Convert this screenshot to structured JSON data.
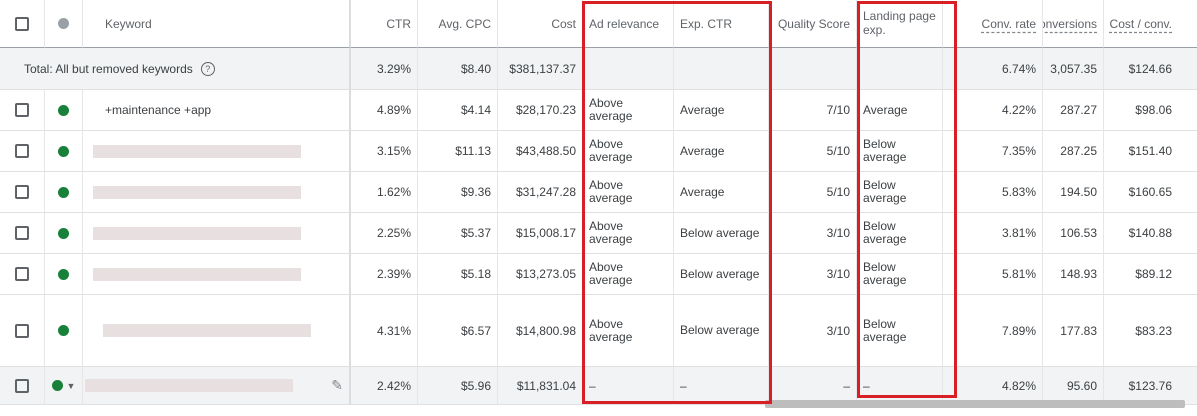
{
  "headers": {
    "keyword": "Keyword",
    "ctr": "CTR",
    "avg_cpc": "Avg. CPC",
    "cost": "Cost",
    "ad_relevance": "Ad relevance",
    "exp_ctr": "Exp. CTR",
    "quality_score": "Quality Score",
    "landing_page": "Landing page exp.",
    "conv_rate": "Conv. rate",
    "conversions": "Conversions",
    "cost_per_conv": "Cost / conv."
  },
  "total": {
    "label": "Total: All but removed keywords",
    "ctr": "3.29%",
    "avg_cpc": "$8.40",
    "cost": "$381,137.37",
    "conv_rate": "6.74%",
    "conversions": "3,057.35",
    "cost_per_conv": "$124.66"
  },
  "rows": [
    {
      "keyword": "+maintenance +app",
      "ctr": "4.89%",
      "avg_cpc": "$4.14",
      "cost": "$28,170.23",
      "ad_relevance": "Above average",
      "exp_ctr": "Average",
      "quality_score": "7/10",
      "landing_page": "Average",
      "conv_rate": "4.22%",
      "conversions": "287.27",
      "cost_per_conv": "$98.06"
    },
    {
      "keyword": "",
      "ctr": "3.15%",
      "avg_cpc": "$11.13",
      "cost": "$43,488.50",
      "ad_relevance": "Above average",
      "exp_ctr": "Average",
      "quality_score": "5/10",
      "landing_page": "Below average",
      "conv_rate": "7.35%",
      "conversions": "287.25",
      "cost_per_conv": "$151.40"
    },
    {
      "keyword": "",
      "ctr": "1.62%",
      "avg_cpc": "$9.36",
      "cost": "$31,247.28",
      "ad_relevance": "Above average",
      "exp_ctr": "Average",
      "quality_score": "5/10",
      "landing_page": "Below average",
      "conv_rate": "5.83%",
      "conversions": "194.50",
      "cost_per_conv": "$160.65"
    },
    {
      "keyword": "",
      "ctr": "2.25%",
      "avg_cpc": "$5.37",
      "cost": "$15,008.17",
      "ad_relevance": "Above average",
      "exp_ctr": "Below average",
      "quality_score": "3/10",
      "landing_page": "Below average",
      "conv_rate": "3.81%",
      "conversions": "106.53",
      "cost_per_conv": "$140.88"
    },
    {
      "keyword": "",
      "ctr": "2.39%",
      "avg_cpc": "$5.18",
      "cost": "$13,273.05",
      "ad_relevance": "Above average",
      "exp_ctr": "Below average",
      "quality_score": "3/10",
      "landing_page": "Below average",
      "conv_rate": "5.81%",
      "conversions": "148.93",
      "cost_per_conv": "$89.12"
    },
    {
      "keyword": "",
      "ctr": "4.31%",
      "avg_cpc": "$6.57",
      "cost": "$14,800.98",
      "ad_relevance": "Above average",
      "exp_ctr": "Below average",
      "quality_score": "3/10",
      "landing_page": "Below average",
      "conv_rate": "7.89%",
      "conversions": "177.83",
      "cost_per_conv": "$83.23"
    },
    {
      "keyword": "",
      "ctr": "2.42%",
      "avg_cpc": "$5.96",
      "cost": "$11,831.04",
      "ad_relevance": "–",
      "exp_ctr": "–",
      "quality_score": "–",
      "landing_page": "–",
      "conv_rate": "4.82%",
      "conversions": "95.60",
      "cost_per_conv": "$123.76"
    }
  ],
  "icons": {
    "status_enabled": "green-dot-icon",
    "status_header": "gray-dot-icon",
    "help": "help-icon",
    "edit": "pencil-icon",
    "dropdown": "caret-down-icon"
  },
  "colors": {
    "highlight": "#d91f26",
    "enabled": "#188038"
  }
}
